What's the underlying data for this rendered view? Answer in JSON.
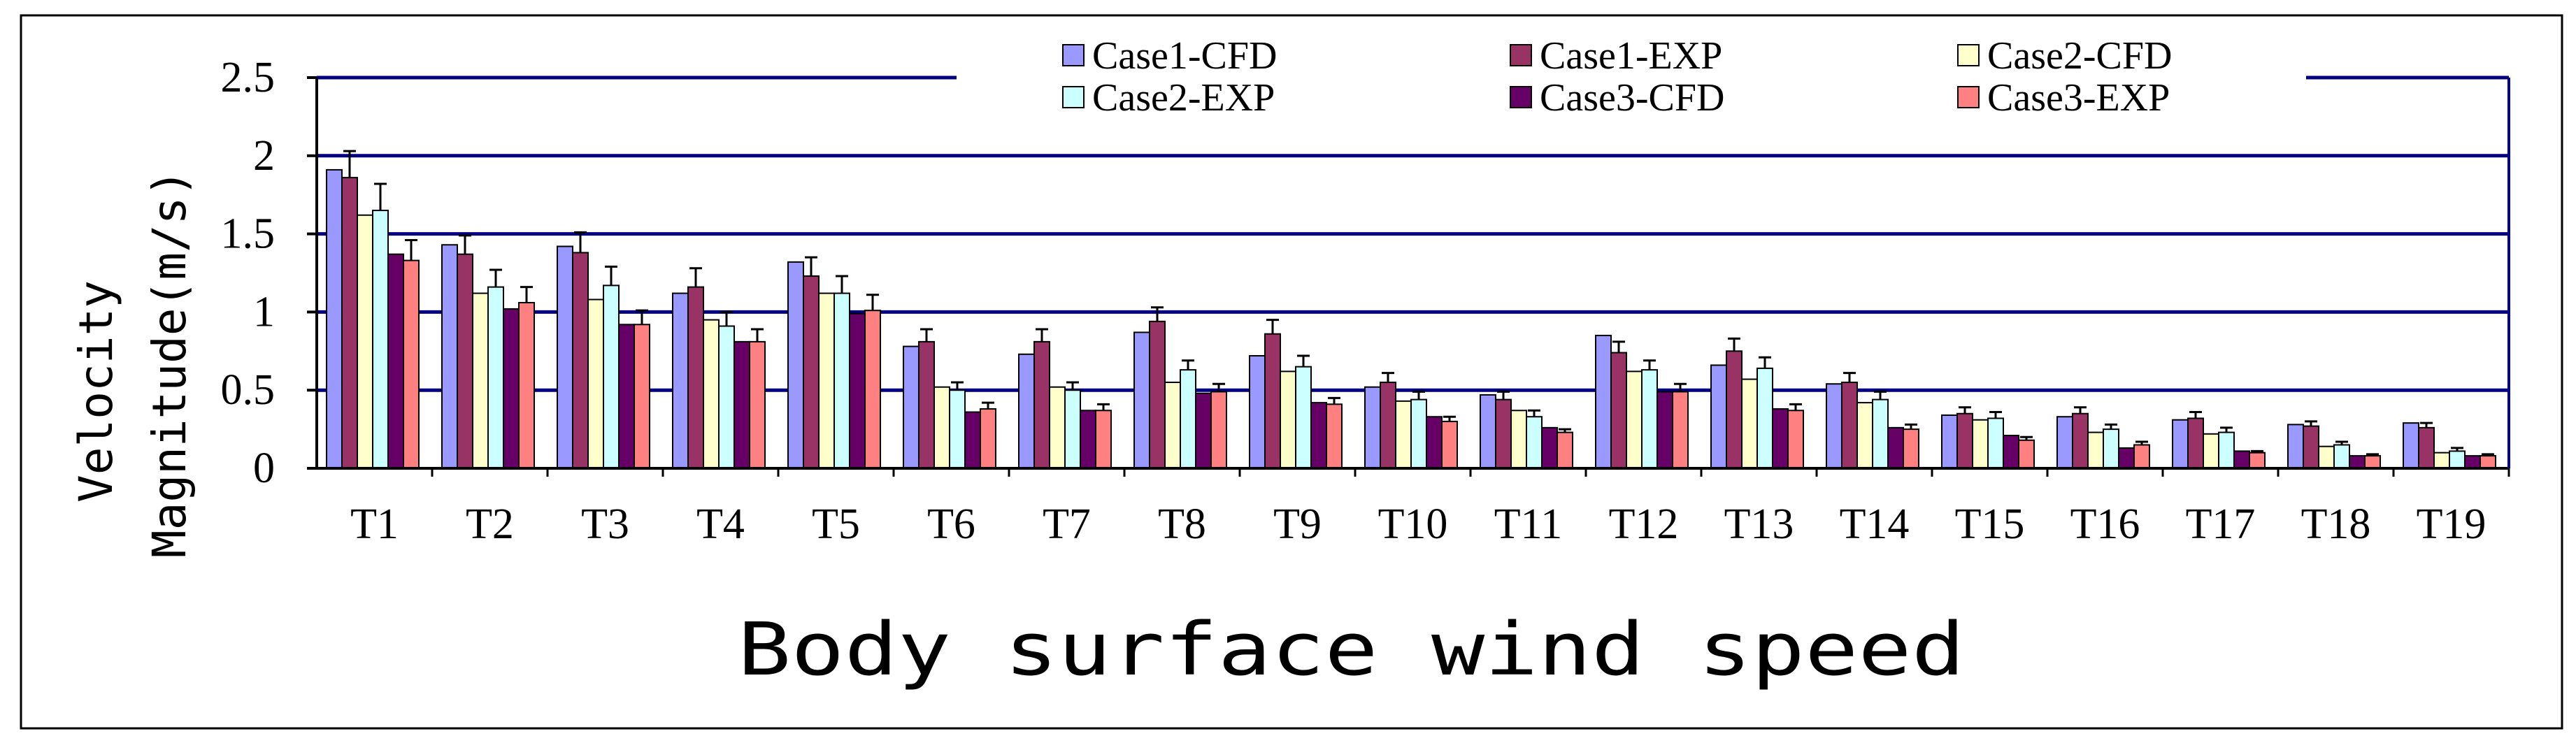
{
  "chart_data": {
    "type": "bar",
    "title": "Body surface wind speed",
    "xlabel": "Body surface wind speed",
    "ylabel": "Velocity Magnitude(m/s)",
    "ylabel_lines": [
      "Velocity",
      "Magnitude(m/s)"
    ],
    "ylim": [
      0,
      2.5
    ],
    "yticks": [
      0,
      0.5,
      1,
      1.5,
      2,
      2.5
    ],
    "ytick_labels": [
      "0",
      "0.5",
      "1",
      "1.5",
      "2",
      "2.5"
    ],
    "grid": true,
    "legend_position": "top",
    "categories": [
      "T1",
      "T2",
      "T3",
      "T4",
      "T5",
      "T6",
      "T7",
      "T8",
      "T9",
      "T10",
      "T11",
      "T12",
      "T13",
      "T14",
      "T15",
      "T16",
      "T17",
      "T18",
      "T19"
    ],
    "series": [
      {
        "name": "Case1-CFD",
        "color": "#9999ff",
        "values": [
          1.91,
          1.43,
          1.42,
          1.12,
          1.32,
          0.78,
          0.73,
          0.87,
          0.72,
          0.52,
          0.47,
          0.85,
          0.66,
          0.54,
          0.34,
          0.33,
          0.31,
          0.28,
          0.29
        ]
      },
      {
        "name": "Case1-EXP",
        "color": "#993366",
        "values": [
          1.86,
          1.37,
          1.38,
          1.16,
          1.23,
          0.81,
          0.81,
          0.94,
          0.86,
          0.55,
          0.44,
          0.74,
          0.75,
          0.55,
          0.35,
          0.35,
          0.32,
          0.27,
          0.26
        ],
        "errors": [
          0.17,
          0.12,
          0.13,
          0.12,
          0.12,
          0.08,
          0.08,
          0.09,
          0.09,
          0.06,
          0.05,
          0.07,
          0.08,
          0.06,
          0.04,
          0.04,
          0.04,
          0.03,
          0.03
        ]
      },
      {
        "name": "Case2-CFD",
        "color": "#ffffcc",
        "values": [
          1.62,
          1.12,
          1.08,
          0.95,
          1.12,
          0.52,
          0.52,
          0.55,
          0.62,
          0.43,
          0.37,
          0.62,
          0.57,
          0.42,
          0.31,
          0.23,
          0.22,
          0.14,
          0.1
        ]
      },
      {
        "name": "Case2-EXP",
        "color": "#ccffff",
        "values": [
          1.65,
          1.16,
          1.17,
          0.91,
          1.12,
          0.5,
          0.5,
          0.63,
          0.65,
          0.44,
          0.33,
          0.63,
          0.64,
          0.44,
          0.32,
          0.25,
          0.23,
          0.15,
          0.11
        ],
        "errors": [
          0.17,
          0.11,
          0.12,
          0.09,
          0.11,
          0.05,
          0.05,
          0.06,
          0.07,
          0.05,
          0.04,
          0.06,
          0.07,
          0.05,
          0.04,
          0.03,
          0.03,
          0.02,
          0.02
        ]
      },
      {
        "name": "Case3-CFD",
        "color": "#660066",
        "values": [
          1.37,
          1.02,
          0.92,
          0.81,
          0.99,
          0.36,
          0.37,
          0.48,
          0.42,
          0.33,
          0.26,
          0.49,
          0.38,
          0.26,
          0.21,
          0.13,
          0.11,
          0.08,
          0.08
        ]
      },
      {
        "name": "Case3-EXP",
        "color": "#ff8080",
        "values": [
          1.33,
          1.06,
          0.92,
          0.81,
          1.01,
          0.38,
          0.37,
          0.49,
          0.41,
          0.3,
          0.23,
          0.49,
          0.37,
          0.25,
          0.18,
          0.15,
          0.1,
          0.08,
          0.08
        ],
        "errors": [
          0.13,
          0.1,
          0.09,
          0.08,
          0.1,
          0.04,
          0.04,
          0.05,
          0.04,
          0.03,
          0.02,
          0.05,
          0.04,
          0.03,
          0.02,
          0.02,
          0.01,
          0.01,
          0.01
        ]
      }
    ]
  }
}
